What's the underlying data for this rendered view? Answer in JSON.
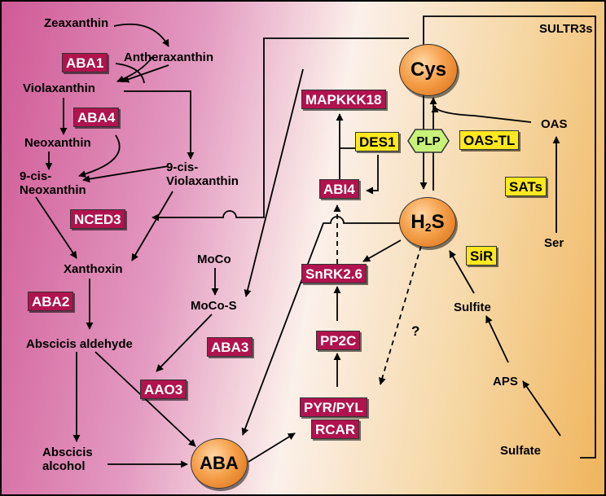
{
  "labels": {
    "zeaxanthin": "Zeaxanthin",
    "antheraxanthin": "Antheraxanthin",
    "violaxanthin": "Violaxanthin",
    "neoxanthin": "Neoxanthin",
    "cis_neoxanthin": "9-cis-\nNeoxanthin",
    "cis_violaxanthin": "9-cis-\nViolaxanthin",
    "xanthoxin": "Xanthoxin",
    "moco": "MoCo",
    "moco_s": "MoCo-S",
    "abscisic_aldehyde": "Abscicis aldehyde",
    "abscisic_alcohol": "Abscicis\nalcohol",
    "oas": "OAS",
    "ser": "Ser",
    "sulfite": "Sulfite",
    "aps": "APS",
    "sulfate": "Sulfate",
    "sultr": "SULTR3s",
    "question": "?"
  },
  "enzymes": {
    "aba1": "ABA1",
    "aba4": "ABA4",
    "nced3": "NCED3",
    "aba2": "ABA2",
    "aba3": "ABA3",
    "aao3": "AAO3",
    "mapkkk18": "MAPKKK18",
    "des1": "DES1",
    "abi4": "ABI4",
    "oas_tl": "OAS-TL",
    "sats": "SATs",
    "sir": "SiR",
    "snrk": "SnRK2.6",
    "pp2c": "PP2C",
    "pyr": "PYR/PYL",
    "rcar": "RCAR",
    "plp": "PLP"
  },
  "hubs": {
    "cys": "Cys",
    "h2s": "H",
    "h2s_sub": "2",
    "h2s_end": "S",
    "aba": "ABA"
  },
  "colors": {
    "enzyme_red": "#b0134e",
    "enzyme_yellow": "#ffe81f",
    "hub_orange": "#f5a04a",
    "plp_green": "#c9f27a",
    "bg_left": "#d05a96",
    "bg_right": "#f0b45c"
  }
}
